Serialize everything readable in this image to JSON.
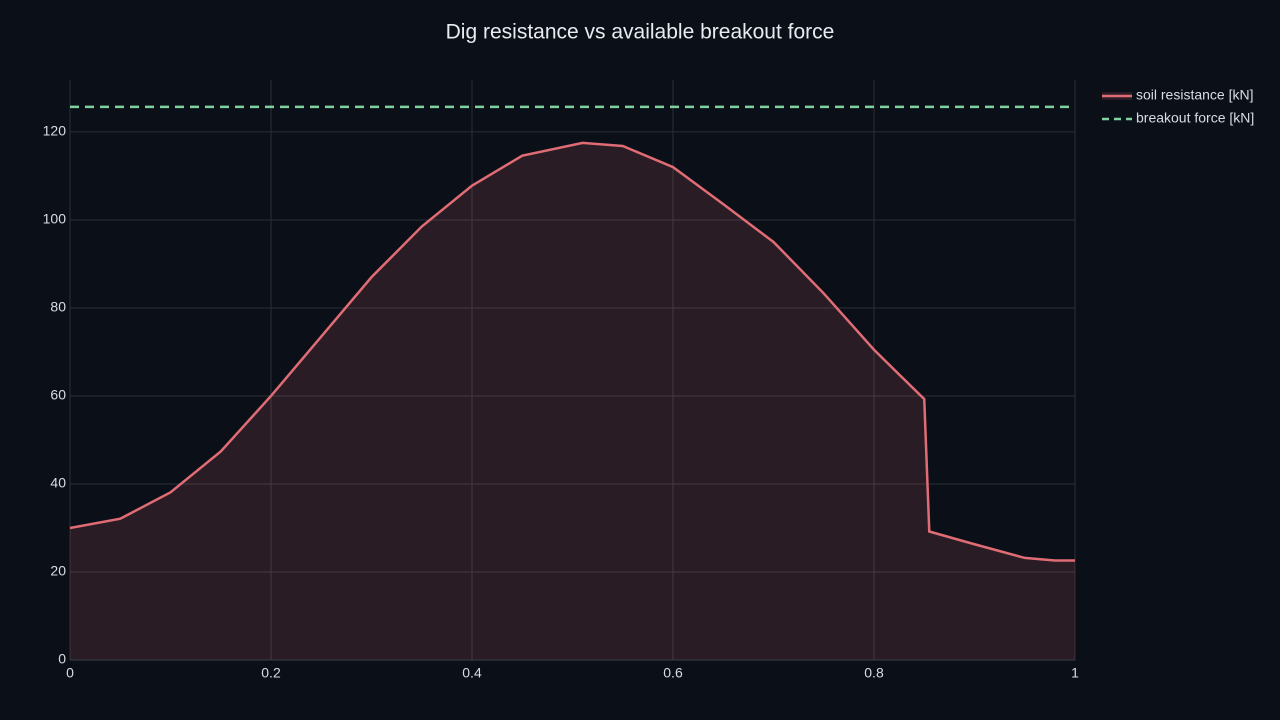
{
  "chart_data": {
    "type": "line",
    "title": "Dig resistance vs available breakout force",
    "series": [
      {
        "name": "soil resistance [kN]",
        "color": "#e06c75",
        "fill": "tozeroy",
        "x": [
          0,
          0.05,
          0.1,
          0.15,
          0.2,
          0.25,
          0.3,
          0.35,
          0.4,
          0.45,
          0.51,
          0.55,
          0.6,
          0.65,
          0.7,
          0.75,
          0.8,
          0.82,
          0.85,
          0.855,
          0.9,
          0.95,
          0.98,
          1
        ],
        "values": [
          30,
          32.1,
          38.1,
          47.4,
          60,
          73.5,
          87,
          98.5,
          107.8,
          114.6,
          117.5,
          116.8,
          112,
          103.6,
          95,
          83.3,
          70.5,
          66,
          59.3,
          29.2,
          26.3,
          23.2,
          22.6,
          22.6
        ]
      },
      {
        "name": "breakout force [kN]",
        "color": "#7fd1a0",
        "dash": true,
        "x": [
          0,
          1
        ],
        "values": [
          125.7,
          125.7
        ]
      }
    ],
    "xlim": [
      0,
      1
    ],
    "xticks": [
      0,
      0.2,
      0.4,
      0.6,
      0.8,
      1
    ],
    "ylim": [
      0,
      131.8
    ],
    "yticks": [
      0,
      20,
      40,
      60,
      80,
      100,
      120
    ],
    "grid": true,
    "legend": "top-right"
  }
}
